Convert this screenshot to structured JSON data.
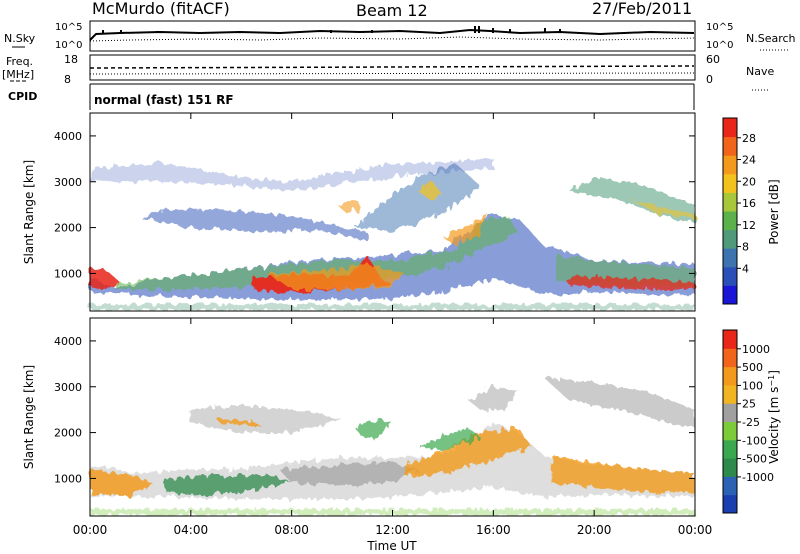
{
  "header": {
    "station": "McMurdo (fitACF)",
    "beam": "Beam 12",
    "date": "27/Feb/2011"
  },
  "top_panels": {
    "nsky_label": "N.Sky",
    "nsky_ticks": [
      "10^5",
      "10^0"
    ],
    "nsearch_label": "N.Search",
    "nsearch_ticks": [
      "10^5",
      "10^0"
    ],
    "freq_label_1": "Freq.",
    "freq_label_2": "[MHz]",
    "freq_ticks": [
      "18",
      "8"
    ],
    "nave_label": "Nave",
    "nave_ticks": [
      "60",
      "0"
    ],
    "cpid_label": "CPID",
    "cpid_text": "normal (fast) 151 RF"
  },
  "chart_data": [
    {
      "type": "heatmap",
      "name": "power",
      "ylabel": "Slant Range [km]",
      "yticks": [
        "4000",
        "3000",
        "2000",
        "1000"
      ],
      "ylim": [
        180,
        4500
      ],
      "xlim": [
        0,
        24
      ],
      "colorbar_label": "Power [dB]",
      "colorbar_ticks": [
        "28",
        "24",
        "20",
        "16",
        "12",
        "8",
        "4"
      ],
      "colors": [
        "#1a16d8",
        "#2a4fb8",
        "#3d74b0",
        "#4e9a7a",
        "#5bb24a",
        "#a8c83a",
        "#f4c21c",
        "#f39a1c",
        "#f0651a",
        "#e8261a"
      ]
    },
    {
      "type": "heatmap",
      "name": "velocity",
      "ylabel": "Slant Range [km]",
      "yticks": [
        "4000",
        "3000",
        "2000",
        "1000"
      ],
      "ylim": [
        180,
        4500
      ],
      "xlim": [
        0,
        24
      ],
      "colorbar_label": "Velocity [m s^-1]",
      "colorbar_ticks": [
        "1000",
        "500",
        "100",
        "25",
        "-25",
        "-100",
        "-500",
        "-1000"
      ],
      "colors": [
        "#1a3fb0",
        "#2b62b4",
        "#2e8a4a",
        "#3aa84e",
        "#7ccc3a",
        "#a0a0a0",
        "#f2b420",
        "#f39a1c",
        "#f0651a",
        "#e8261a"
      ]
    }
  ],
  "x_axis": {
    "ticks": [
      "00:00",
      "04:00",
      "08:00",
      "12:00",
      "16:00",
      "20:00",
      "00:00"
    ],
    "label": "Time UT"
  }
}
